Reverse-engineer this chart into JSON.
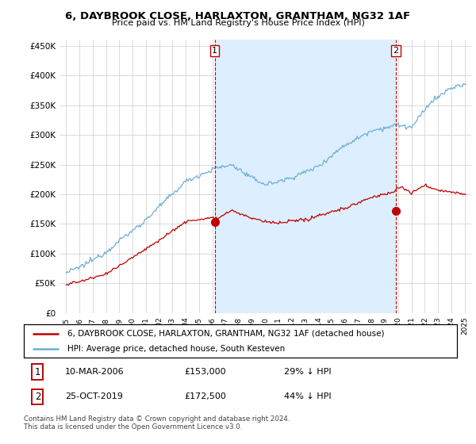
{
  "title": "6, DAYBROOK CLOSE, HARLAXTON, GRANTHAM, NG32 1AF",
  "subtitle": "Price paid vs. HM Land Registry's House Price Index (HPI)",
  "legend_line1": "6, DAYBROOK CLOSE, HARLAXTON, GRANTHAM, NG32 1AF (detached house)",
  "legend_line2": "HPI: Average price, detached house, South Kesteven",
  "annotation1_label": "1",
  "annotation1_date": "10-MAR-2006",
  "annotation1_price": "£153,000",
  "annotation1_hpi": "29% ↓ HPI",
  "annotation2_label": "2",
  "annotation2_date": "25-OCT-2019",
  "annotation2_price": "£172,500",
  "annotation2_hpi": "44% ↓ HPI",
  "footer": "Contains HM Land Registry data © Crown copyright and database right 2024.\nThis data is licensed under the Open Government Licence v3.0.",
  "sale1_year": 2006.19,
  "sale1_value": 153000,
  "sale2_year": 2019.81,
  "sale2_value": 172500,
  "hpi_color": "#6baed6",
  "price_color": "#c00000",
  "shade_color": "#ddeeff",
  "ylim_min": 0,
  "ylim_max": 460000,
  "xlim_min": 1994.5,
  "xlim_max": 2025.5,
  "yticks": [
    0,
    50000,
    100000,
    150000,
    200000,
    250000,
    300000,
    350000,
    400000,
    450000
  ],
  "ytick_labels": [
    "£0",
    "£50K",
    "£100K",
    "£150K",
    "£200K",
    "£250K",
    "£300K",
    "£350K",
    "£400K",
    "£450K"
  ],
  "background_color": "#ffffff",
  "grid_color": "#cccccc"
}
